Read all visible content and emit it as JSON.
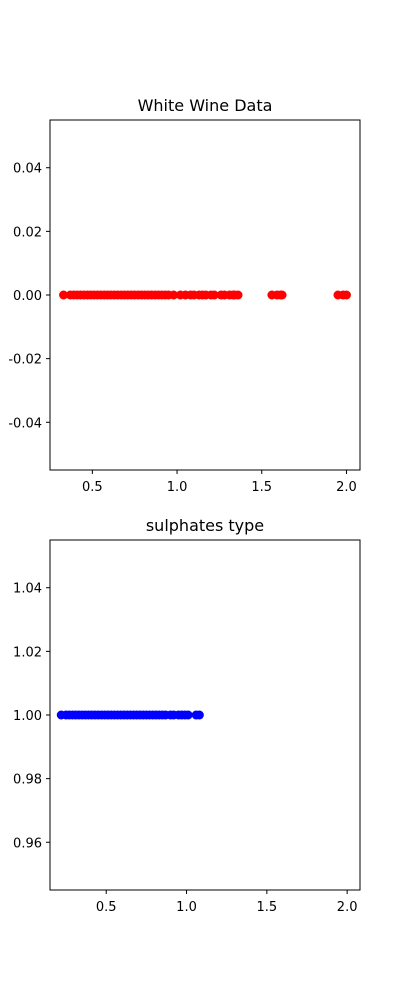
{
  "chart_data": [
    {
      "type": "scatter",
      "title": "White Wine Data",
      "xlabel": "",
      "ylabel": "",
      "xlim": [
        0.25,
        2.08
      ],
      "ylim": [
        -0.055,
        0.055
      ],
      "xticks": [
        "0.5",
        "1.0",
        "1.5",
        "2.0"
      ],
      "yticks": [
        "0.04",
        "0.02",
        "0.00",
        "-0.02",
        "-0.04"
      ],
      "grid": false,
      "series": [
        {
          "color": "#ff0000",
          "x": [
            0.33,
            0.37,
            0.39,
            0.41,
            0.43,
            0.45,
            0.47,
            0.49,
            0.51,
            0.53,
            0.55,
            0.57,
            0.59,
            0.61,
            0.63,
            0.65,
            0.67,
            0.69,
            0.71,
            0.73,
            0.75,
            0.77,
            0.79,
            0.81,
            0.83,
            0.85,
            0.87,
            0.89,
            0.91,
            0.93,
            0.95,
            0.98,
            1.02,
            1.05,
            1.08,
            1.1,
            1.13,
            1.15,
            1.17,
            1.2,
            1.22,
            1.26,
            1.28,
            1.31,
            1.33,
            1.34,
            1.36,
            1.56,
            1.59,
            1.61,
            1.62,
            1.95,
            1.98,
            2.0
          ],
          "y": [
            0,
            0,
            0,
            0,
            0,
            0,
            0,
            0,
            0,
            0,
            0,
            0,
            0,
            0,
            0,
            0,
            0,
            0,
            0,
            0,
            0,
            0,
            0,
            0,
            0,
            0,
            0,
            0,
            0,
            0,
            0,
            0,
            0,
            0,
            0,
            0,
            0,
            0,
            0,
            0,
            0,
            0,
            0,
            0,
            0,
            0,
            0,
            0,
            0,
            0,
            0,
            0,
            0,
            0
          ]
        }
      ]
    },
    {
      "type": "scatter",
      "title": "sulphates type",
      "xlabel": "",
      "ylabel": "",
      "xlim": [
        0.15,
        2.08
      ],
      "ylim": [
        0.945,
        1.055
      ],
      "xticks": [
        "0.5",
        "1.0",
        "1.5",
        "2.0"
      ],
      "yticks": [
        "1.04",
        "1.02",
        "1.00",
        "0.98",
        "0.96"
      ],
      "grid": false,
      "series": [
        {
          "color": "#0000ff",
          "x": [
            0.22,
            0.25,
            0.27,
            0.29,
            0.31,
            0.33,
            0.35,
            0.37,
            0.39,
            0.41,
            0.43,
            0.45,
            0.47,
            0.49,
            0.51,
            0.53,
            0.55,
            0.57,
            0.59,
            0.61,
            0.63,
            0.65,
            0.67,
            0.69,
            0.71,
            0.73,
            0.75,
            0.77,
            0.79,
            0.81,
            0.83,
            0.85,
            0.87,
            0.9,
            0.92,
            0.95,
            0.97,
            0.99,
            1.01,
            1.06,
            1.08
          ],
          "y": [
            1,
            1,
            1,
            1,
            1,
            1,
            1,
            1,
            1,
            1,
            1,
            1,
            1,
            1,
            1,
            1,
            1,
            1,
            1,
            1,
            1,
            1,
            1,
            1,
            1,
            1,
            1,
            1,
            1,
            1,
            1,
            1,
            1,
            1,
            1,
            1,
            1,
            1,
            1,
            1,
            1
          ]
        }
      ]
    }
  ]
}
